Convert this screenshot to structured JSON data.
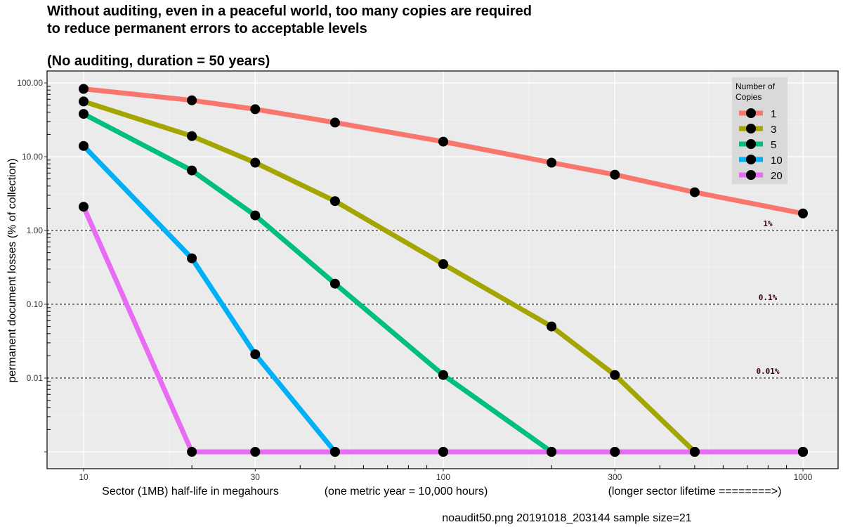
{
  "chart_data": {
    "type": "line",
    "title_lines": [
      "Without auditing, even in a peaceful world, too many copies are required",
      "to reduce permanent errors to acceptable levels"
    ],
    "subtitle": "(No auditing, duration = 50 years)",
    "ylabel": "permanent document losses (% of collection)",
    "xlabel_parts": [
      "Sector (1MB) half-life in megahours",
      "(one metric year = 10,000 hours)",
      "(longer sector lifetime ========>)"
    ],
    "x_scale": "log",
    "y_scale": "log",
    "xlim": [
      10,
      1000
    ],
    "ylim": [
      0.001,
      100
    ],
    "x_ticks": [
      10,
      30,
      100,
      300,
      1000
    ],
    "x_tick_labels": [
      "10",
      "30",
      "100",
      "300",
      "1000"
    ],
    "y_ticks": [
      0.001,
      0.01,
      0.1,
      1,
      10,
      100
    ],
    "y_tick_labels": [
      "",
      "0.01",
      "0.10",
      "1.00",
      "10.00",
      "100.00"
    ],
    "x": [
      10,
      20,
      30,
      50,
      100,
      200,
      300,
      500,
      1000
    ],
    "series": [
      {
        "name": "1",
        "color": "#F8766D",
        "values": [
          83,
          58,
          44,
          29,
          16,
          8.3,
          5.7,
          3.3,
          1.7
        ]
      },
      {
        "name": "3",
        "color": "#A3A500",
        "values": [
          56,
          19,
          8.3,
          2.5,
          0.35,
          0.05,
          0.011,
          0.001,
          0.001
        ]
      },
      {
        "name": "5",
        "color": "#00BF7D",
        "values": [
          38,
          6.5,
          1.6,
          0.19,
          0.011,
          0.001,
          0.001,
          0.001,
          0.001
        ]
      },
      {
        "name": "10",
        "color": "#00B0F6",
        "values": [
          14,
          0.42,
          0.021,
          0.001,
          0.001,
          0.001,
          0.001,
          0.001,
          0.001
        ]
      },
      {
        "name": "20",
        "color": "#E76BF3",
        "values": [
          2.1,
          0.001,
          0.001,
          0.001,
          0.001,
          0.001,
          0.001,
          0.001,
          0.001
        ]
      }
    ],
    "reference_lines": [
      {
        "y": 1,
        "label": "1%"
      },
      {
        "y": 0.1,
        "label": "0.1%"
      },
      {
        "y": 0.01,
        "label": "0.01%"
      }
    ],
    "legend": {
      "title_lines": [
        "Number of",
        "Copies"
      ],
      "placement": "top-right"
    },
    "grid": true,
    "caption": "noaudit50.png   20191018_203144   sample size=21"
  }
}
